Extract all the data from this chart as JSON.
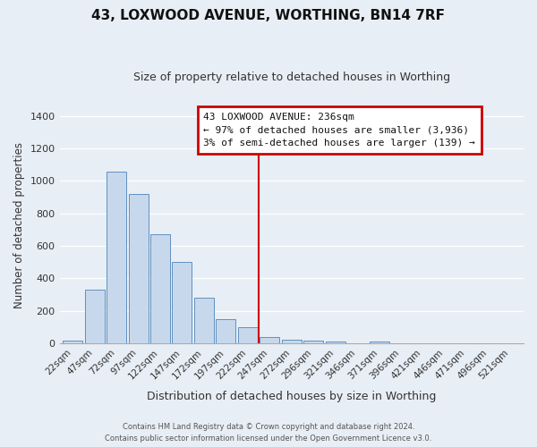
{
  "title": "43, LOXWOOD AVENUE, WORTHING, BN14 7RF",
  "subtitle": "Size of property relative to detached houses in Worthing",
  "xlabel": "Distribution of detached houses by size in Worthing",
  "ylabel": "Number of detached properties",
  "bar_labels": [
    "22sqm",
    "47sqm",
    "72sqm",
    "97sqm",
    "122sqm",
    "147sqm",
    "172sqm",
    "197sqm",
    "222sqm",
    "247sqm",
    "272sqm",
    "296sqm",
    "321sqm",
    "346sqm",
    "371sqm",
    "396sqm",
    "421sqm",
    "446sqm",
    "471sqm",
    "496sqm",
    "521sqm"
  ],
  "bar_values": [
    20,
    330,
    1055,
    920,
    670,
    500,
    280,
    150,
    100,
    40,
    22,
    15,
    10,
    0,
    10,
    0,
    0,
    0,
    0,
    0,
    0
  ],
  "bar_color": "#c8d8ec",
  "bar_edge_color": "#6090c0",
  "marker_color": "#cc0000",
  "ylim": [
    0,
    1450
  ],
  "yticks": [
    0,
    200,
    400,
    600,
    800,
    1000,
    1200,
    1400
  ],
  "annotation_title": "43 LOXWOOD AVENUE: 236sqm",
  "annotation_line1": "← 97% of detached houses are smaller (3,936)",
  "annotation_line2": "3% of semi-detached houses are larger (139) →",
  "annotation_box_color": "#ffffff",
  "annotation_border_color": "#cc0000",
  "background_color": "#e8eef5",
  "grid_color": "#ffffff",
  "footer1": "Contains HM Land Registry data © Crown copyright and database right 2024.",
  "footer2": "Contains public sector information licensed under the Open Government Licence v3.0."
}
